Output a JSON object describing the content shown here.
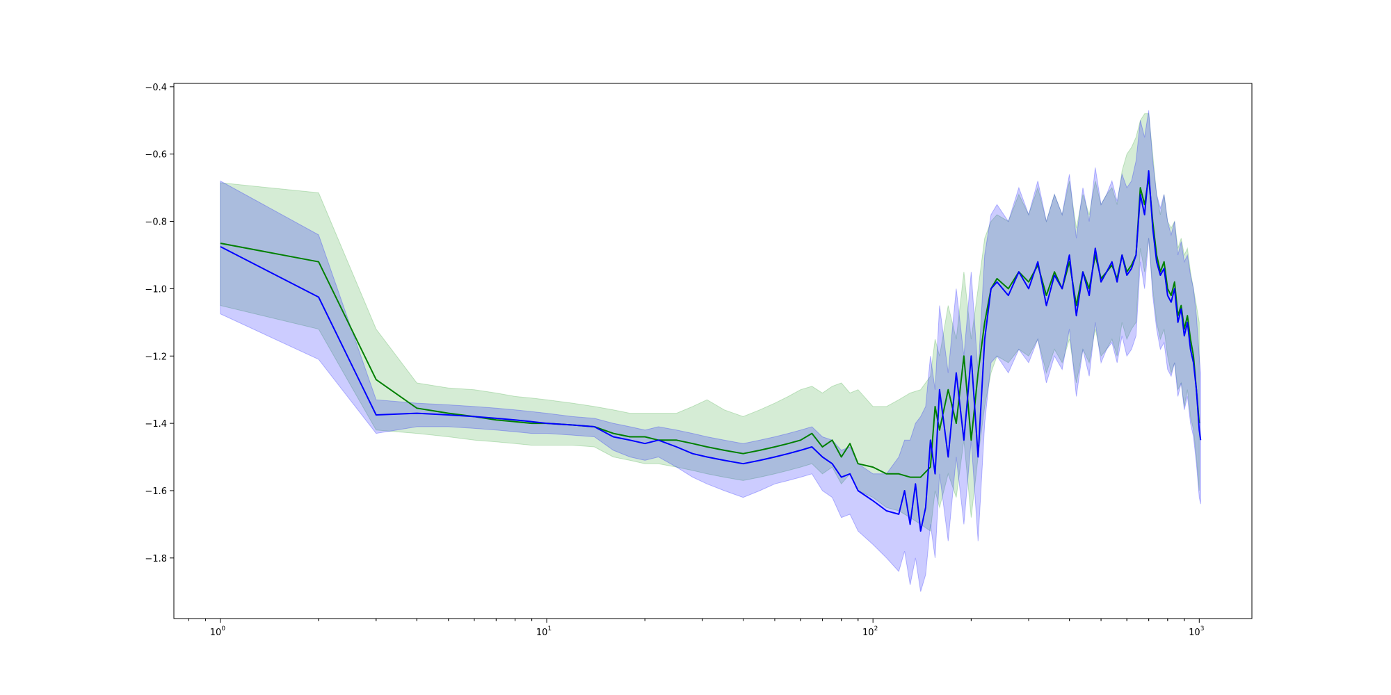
{
  "chart_data": {
    "type": "line",
    "title": "",
    "xlabel": "",
    "ylabel": "",
    "xscale": "log",
    "xlim": [
      0.72,
      1450
    ],
    "ylim": [
      -1.98,
      -0.39
    ],
    "grid": false,
    "legend": "none",
    "x_ticks": [
      {
        "value": 1,
        "base": "10",
        "exp": "0"
      },
      {
        "value": 10,
        "base": "10",
        "exp": "1"
      },
      {
        "value": 100,
        "base": "10",
        "exp": "2"
      },
      {
        "value": 1000,
        "base": "10",
        "exp": "3"
      }
    ],
    "y_ticks": [
      {
        "value": -0.4,
        "label": "−0.4"
      },
      {
        "value": -0.6,
        "label": "−0.6"
      },
      {
        "value": -0.8,
        "label": "−0.8"
      },
      {
        "value": -1.0,
        "label": "−1.0"
      },
      {
        "value": -1.2,
        "label": "−1.2"
      },
      {
        "value": -1.4,
        "label": "−1.4"
      },
      {
        "value": -1.6,
        "label": "−1.6"
      },
      {
        "value": -1.8,
        "label": "−1.8"
      }
    ],
    "series": [
      {
        "color": "#008000",
        "band_color": "#2ca02c",
        "x": [
          1,
          2,
          3,
          4,
          5,
          6,
          7,
          8,
          9,
          10,
          12,
          14,
          16,
          18,
          20,
          22,
          25,
          28,
          31,
          35,
          40,
          45,
          50,
          55,
          60,
          65,
          70,
          75,
          80,
          85,
          90,
          100,
          110,
          120,
          130,
          140,
          150,
          155,
          160,
          170,
          180,
          190,
          200,
          210,
          220,
          230,
          240,
          260,
          280,
          300,
          320,
          340,
          360,
          380,
          400,
          420,
          440,
          460,
          480,
          500,
          520,
          540,
          560,
          580,
          600,
          620,
          640,
          660,
          680,
          700,
          720,
          740,
          760,
          780,
          800,
          820,
          840,
          860,
          880,
          900,
          920,
          940,
          960,
          980,
          1000
        ],
        "y": [
          -0.865,
          -0.92,
          -1.27,
          -1.355,
          -1.37,
          -1.38,
          -1.39,
          -1.395,
          -1.4,
          -1.4,
          -1.405,
          -1.41,
          -1.43,
          -1.44,
          -1.44,
          -1.45,
          -1.45,
          -1.46,
          -1.47,
          -1.48,
          -1.49,
          -1.48,
          -1.47,
          -1.46,
          -1.45,
          -1.43,
          -1.47,
          -1.45,
          -1.5,
          -1.46,
          -1.52,
          -1.53,
          -1.55,
          -1.55,
          -1.56,
          -1.56,
          -1.53,
          -1.35,
          -1.42,
          -1.3,
          -1.4,
          -1.2,
          -1.45,
          -1.25,
          -1.1,
          -1.0,
          -0.97,
          -1.0,
          -0.95,
          -0.98,
          -0.93,
          -1.02,
          -0.95,
          -1.0,
          -0.92,
          -1.05,
          -0.95,
          -1.0,
          -0.9,
          -0.97,
          -0.95,
          -0.93,
          -0.97,
          -0.9,
          -0.95,
          -0.93,
          -0.9,
          -0.7,
          -0.75,
          -0.67,
          -0.8,
          -0.9,
          -0.95,
          -0.92,
          -1.0,
          -1.02,
          -0.98,
          -1.08,
          -1.05,
          -1.12,
          -1.08,
          -1.15,
          -1.2,
          -1.3,
          -1.4
        ],
        "upper": [
          -0.685,
          -0.715,
          -1.12,
          -1.28,
          -1.295,
          -1.3,
          -1.31,
          -1.32,
          -1.325,
          -1.33,
          -1.34,
          -1.35,
          -1.36,
          -1.37,
          -1.37,
          -1.37,
          -1.37,
          -1.35,
          -1.33,
          -1.36,
          -1.38,
          -1.36,
          -1.34,
          -1.32,
          -1.3,
          -1.29,
          -1.31,
          -1.29,
          -1.28,
          -1.31,
          -1.3,
          -1.35,
          -1.35,
          -1.33,
          -1.31,
          -1.3,
          -1.26,
          -1.15,
          -1.2,
          -1.05,
          -1.15,
          -0.95,
          -1.15,
          -1.0,
          -0.85,
          -0.8,
          -0.78,
          -0.8,
          -0.72,
          -0.78,
          -0.7,
          -0.8,
          -0.72,
          -0.78,
          -0.68,
          -0.82,
          -0.72,
          -0.78,
          -0.68,
          -0.75,
          -0.72,
          -0.7,
          -0.75,
          -0.65,
          -0.6,
          -0.58,
          -0.55,
          -0.5,
          -0.48,
          -0.48,
          -0.6,
          -0.72,
          -0.78,
          -0.72,
          -0.8,
          -0.82,
          -0.8,
          -0.88,
          -0.85,
          -0.9,
          -0.88,
          -0.95,
          -1.0,
          -1.05,
          -1.1
        ],
        "lower": [
          -1.05,
          -1.12,
          -1.42,
          -1.43,
          -1.44,
          -1.45,
          -1.455,
          -1.46,
          -1.465,
          -1.465,
          -1.465,
          -1.47,
          -1.5,
          -1.51,
          -1.52,
          -1.52,
          -1.53,
          -1.54,
          -1.55,
          -1.56,
          -1.57,
          -1.56,
          -1.55,
          -1.54,
          -1.53,
          -1.52,
          -1.55,
          -1.53,
          -1.58,
          -1.55,
          -1.6,
          -1.62,
          -1.65,
          -1.66,
          -1.68,
          -1.7,
          -1.72,
          -1.6,
          -1.65,
          -1.55,
          -1.62,
          -1.45,
          -1.68,
          -1.5,
          -1.35,
          -1.25,
          -1.2,
          -1.22,
          -1.18,
          -1.2,
          -1.15,
          -1.25,
          -1.18,
          -1.22,
          -1.15,
          -1.28,
          -1.18,
          -1.22,
          -1.12,
          -1.2,
          -1.18,
          -1.15,
          -1.2,
          -1.1,
          -1.15,
          -1.12,
          -1.1,
          -0.88,
          -0.95,
          -0.85,
          -1.0,
          -1.1,
          -1.15,
          -1.12,
          -1.2,
          -1.25,
          -1.22,
          -1.3,
          -1.28,
          -1.35,
          -1.3,
          -1.38,
          -1.42,
          -1.5,
          -1.6
        ]
      },
      {
        "color": "#0000ff",
        "band_color": "#0000ff",
        "x": [
          1,
          2,
          3,
          4,
          5,
          6,
          7,
          8,
          9,
          10,
          12,
          14,
          16,
          18,
          20,
          22,
          25,
          28,
          31,
          35,
          40,
          45,
          50,
          55,
          60,
          65,
          70,
          75,
          80,
          85,
          90,
          100,
          110,
          120,
          125,
          130,
          135,
          140,
          145,
          150,
          155,
          160,
          170,
          180,
          190,
          200,
          210,
          220,
          230,
          240,
          260,
          280,
          300,
          320,
          340,
          360,
          380,
          400,
          420,
          440,
          460,
          480,
          500,
          520,
          540,
          560,
          580,
          600,
          620,
          640,
          660,
          680,
          700,
          720,
          740,
          760,
          780,
          800,
          820,
          840,
          860,
          880,
          900,
          920,
          940,
          960,
          980,
          1000,
          1010
        ],
        "y": [
          -0.875,
          -1.025,
          -1.375,
          -1.37,
          -1.375,
          -1.38,
          -1.385,
          -1.39,
          -1.395,
          -1.4,
          -1.405,
          -1.41,
          -1.44,
          -1.45,
          -1.46,
          -1.45,
          -1.47,
          -1.49,
          -1.5,
          -1.51,
          -1.52,
          -1.51,
          -1.5,
          -1.49,
          -1.48,
          -1.47,
          -1.5,
          -1.52,
          -1.56,
          -1.55,
          -1.6,
          -1.63,
          -1.66,
          -1.67,
          -1.6,
          -1.7,
          -1.58,
          -1.72,
          -1.65,
          -1.45,
          -1.55,
          -1.3,
          -1.5,
          -1.25,
          -1.45,
          -1.2,
          -1.5,
          -1.15,
          -1.0,
          -0.98,
          -1.02,
          -0.95,
          -1.0,
          -0.92,
          -1.05,
          -0.96,
          -1.0,
          -0.9,
          -1.08,
          -0.95,
          -1.02,
          -0.88,
          -0.98,
          -0.95,
          -0.92,
          -0.98,
          -0.9,
          -0.96,
          -0.94,
          -0.9,
          -0.72,
          -0.78,
          -0.65,
          -0.82,
          -0.92,
          -0.96,
          -0.94,
          -1.02,
          -1.04,
          -1.0,
          -1.1,
          -1.06,
          -1.14,
          -1.1,
          -1.18,
          -1.22,
          -1.3,
          -1.42,
          -1.45
        ],
        "upper": [
          -0.68,
          -0.84,
          -1.33,
          -1.34,
          -1.345,
          -1.35,
          -1.355,
          -1.36,
          -1.365,
          -1.37,
          -1.38,
          -1.385,
          -1.4,
          -1.41,
          -1.42,
          -1.41,
          -1.42,
          -1.43,
          -1.44,
          -1.45,
          -1.46,
          -1.45,
          -1.44,
          -1.43,
          -1.42,
          -1.41,
          -1.44,
          -1.45,
          -1.48,
          -1.47,
          -1.52,
          -1.55,
          -1.55,
          -1.5,
          -1.45,
          -1.45,
          -1.4,
          -1.38,
          -1.35,
          -1.2,
          -1.3,
          -1.05,
          -1.25,
          -1.0,
          -1.2,
          -0.95,
          -1.25,
          -0.9,
          -0.78,
          -0.75,
          -0.8,
          -0.7,
          -0.78,
          -0.68,
          -0.8,
          -0.72,
          -0.78,
          -0.66,
          -0.85,
          -0.7,
          -0.8,
          -0.64,
          -0.75,
          -0.72,
          -0.68,
          -0.74,
          -0.66,
          -0.7,
          -0.68,
          -0.62,
          -0.5,
          -0.55,
          -0.47,
          -0.62,
          -0.72,
          -0.76,
          -0.72,
          -0.8,
          -0.84,
          -0.8,
          -0.9,
          -0.86,
          -0.92,
          -0.9,
          -0.96,
          -1.0,
          -1.08,
          -1.2,
          -1.25
        ],
        "lower": [
          -1.075,
          -1.21,
          -1.43,
          -1.41,
          -1.41,
          -1.415,
          -1.42,
          -1.425,
          -1.43,
          -1.43,
          -1.435,
          -1.44,
          -1.48,
          -1.5,
          -1.51,
          -1.5,
          -1.53,
          -1.56,
          -1.58,
          -1.6,
          -1.62,
          -1.6,
          -1.58,
          -1.57,
          -1.56,
          -1.55,
          -1.6,
          -1.62,
          -1.68,
          -1.67,
          -1.72,
          -1.76,
          -1.8,
          -1.84,
          -1.78,
          -1.88,
          -1.8,
          -1.9,
          -1.85,
          -1.7,
          -1.8,
          -1.55,
          -1.75,
          -1.5,
          -1.7,
          -1.45,
          -1.75,
          -1.4,
          -1.22,
          -1.2,
          -1.25,
          -1.18,
          -1.22,
          -1.15,
          -1.28,
          -1.2,
          -1.24,
          -1.12,
          -1.32,
          -1.18,
          -1.26,
          -1.1,
          -1.22,
          -1.18,
          -1.16,
          -1.22,
          -1.14,
          -1.2,
          -1.18,
          -1.14,
          -0.92,
          -1.0,
          -0.85,
          -1.02,
          -1.12,
          -1.18,
          -1.16,
          -1.24,
          -1.26,
          -1.22,
          -1.32,
          -1.28,
          -1.36,
          -1.32,
          -1.4,
          -1.44,
          -1.52,
          -1.62,
          -1.64
        ]
      }
    ]
  }
}
